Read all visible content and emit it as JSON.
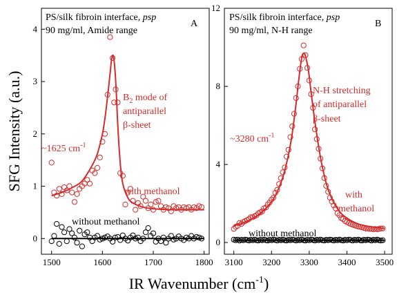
{
  "colors": {
    "red": "#d62a2a",
    "black": "#000000"
  },
  "chart_data": [
    {
      "type": "scatter",
      "panel_label": "A",
      "title_main": "PS/silk fibroin interface, ",
      "title_italic": "psp",
      "subtitle": "90 mg/ml, Amide range",
      "xlabel": "IR Wavenumber (cm-1)",
      "ylabel": "SFG Intensity (a.u.)",
      "xlim": [
        1480,
        1810
      ],
      "ylim": [
        -0.3,
        4.4
      ],
      "xticks": [
        1500,
        1600,
        1700,
        1800
      ],
      "yticks": [
        0,
        1,
        2,
        3,
        4
      ],
      "x_tick_labels": [
        "1500",
        "1600",
        "1700",
        "1800"
      ],
      "y_tick_labels": [
        "0",
        "1",
        "2",
        "3",
        "4"
      ],
      "annotations": {
        "peak_pre": "~1625 cm",
        "peak_sup": "-1",
        "mode_line1_pre": "B",
        "mode_line1_sub": "2",
        "mode_line1_post": " mode of",
        "mode_line2": "antiparallel",
        "mode_line3": "β-sheet",
        "with_label": "with methanol",
        "without_label": "without methanol"
      },
      "series": [
        {
          "label": "with methanol",
          "color": "#d62a2a",
          "x": [
            1500,
            1505,
            1510,
            1515,
            1520,
            1525,
            1530,
            1535,
            1540,
            1545,
            1550,
            1555,
            1560,
            1565,
            1570,
            1575,
            1580,
            1585,
            1590,
            1595,
            1600,
            1605,
            1610,
            1615,
            1620,
            1623,
            1626,
            1630,
            1635,
            1640,
            1645,
            1650,
            1655,
            1660,
            1665,
            1670,
            1675,
            1680,
            1685,
            1690,
            1695,
            1700,
            1705,
            1710,
            1715,
            1720,
            1725,
            1730,
            1735,
            1740,
            1745,
            1750,
            1755,
            1760,
            1765,
            1770,
            1775,
            1780,
            1785,
            1790,
            1795
          ],
          "y": [
            1.45,
            0.88,
            0.82,
            0.95,
            0.85,
            0.98,
            0.92,
            1.0,
            0.88,
            0.7,
            0.85,
            0.95,
            1.0,
            1.05,
            1.12,
            1.05,
            1.3,
            1.25,
            1.35,
            1.55,
            1.85,
            2.0,
            2.75,
            3.85,
            3.45,
            2.6,
            2.85,
            2.6,
            1.25,
            1.2,
            0.65,
            0.88,
            0.95,
            0.72,
            0.55,
            0.68,
            0.62,
            0.8,
            0.72,
            0.58,
            0.65,
            0.55,
            0.7,
            0.72,
            0.62,
            0.55,
            0.6,
            0.58,
            0.52,
            0.62,
            0.58,
            0.6,
            0.55,
            0.6,
            0.58,
            0.6,
            0.55,
            0.6,
            0.58,
            0.62,
            0.6
          ]
        },
        {
          "label": "with methanol fit",
          "color": "#d62a2a",
          "curve": true,
          "x": [
            1500,
            1520,
            1540,
            1560,
            1580,
            1590,
            1600,
            1605,
            1610,
            1615,
            1618,
            1621,
            1624,
            1627,
            1630,
            1635,
            1640,
            1650,
            1660,
            1680,
            1700,
            1740,
            1800
          ],
          "y": [
            0.82,
            0.88,
            0.97,
            1.1,
            1.4,
            1.62,
            2.0,
            2.3,
            2.7,
            3.15,
            3.42,
            3.5,
            3.3,
            2.85,
            2.2,
            1.45,
            1.05,
            0.78,
            0.68,
            0.6,
            0.57,
            0.55,
            0.55
          ]
        },
        {
          "label": "without methanol",
          "color": "#000000",
          "x": [
            1500,
            1505,
            1510,
            1515,
            1520,
            1525,
            1530,
            1535,
            1540,
            1545,
            1550,
            1555,
            1560,
            1565,
            1570,
            1575,
            1580,
            1585,
            1590,
            1595,
            1600,
            1605,
            1610,
            1615,
            1620,
            1625,
            1630,
            1635,
            1640,
            1645,
            1650,
            1655,
            1660,
            1665,
            1670,
            1675,
            1680,
            1685,
            1690,
            1695,
            1700,
            1705,
            1710,
            1715,
            1720,
            1725,
            1730,
            1735,
            1740,
            1745,
            1750,
            1755,
            1760,
            1765,
            1770,
            1775,
            1780,
            1785,
            1790,
            1795
          ],
          "y": [
            -0.05,
            0.05,
            0.28,
            -0.1,
            0.22,
            0.12,
            -0.05,
            0.18,
            0.1,
            0.02,
            -0.08,
            0.15,
            -0.15,
            0.08,
            0.12,
            0.02,
            -0.05,
            0.02,
            0.05,
            -0.02,
            0.0,
            0.02,
            0.04,
            0.0,
            -0.06,
            0.02,
            0.03,
            -0.03,
            0.06,
            0.0,
            -0.04,
            0.02,
            0.06,
            0.0,
            0.02,
            -0.05,
            0.0,
            0.12,
            0.2,
            0.05,
            0.1,
            -0.06,
            0.0,
            -0.05,
            0.02,
            -0.08,
            0.0,
            0.05,
            -0.02,
            0.0,
            0.04,
            0.0,
            -0.03,
            0.02,
            0.0,
            0.05,
            0.0,
            0.03,
            0.02,
            0.0
          ]
        },
        {
          "label": "without methanol fit",
          "color": "#000000",
          "curve": true,
          "x": [
            1500,
            1800
          ],
          "y": [
            0.0,
            0.0
          ]
        }
      ]
    },
    {
      "type": "scatter",
      "panel_label": "B",
      "title_main": "PS/silk fibroin interface, ",
      "title_italic": "psp",
      "subtitle": "90 mg/ml, N-H range",
      "xlabel": "IR Wavenumber (cm-1)",
      "ylabel": "",
      "xlim": [
        3075,
        3520
      ],
      "ylim": [
        -0.6,
        12
      ],
      "xticks": [
        3100,
        3200,
        3300,
        3400,
        3500
      ],
      "yticks": [
        0,
        4,
        8,
        12
      ],
      "x_tick_labels": [
        "3100",
        "3200",
        "3300",
        "3400",
        "3500"
      ],
      "y_tick_labels": [
        "0",
        "4",
        "8",
        "12"
      ],
      "annotations": {
        "peak_pre": "~3280 cm",
        "peak_sup": "-1",
        "mode_line1": "N-H stretching",
        "mode_line2": "of antiparallel",
        "mode_line3": "β-sheet",
        "with_label_1": "with",
        "with_label_2": "methanol",
        "without_label": "without methanol"
      },
      "series": [
        {
          "label": "with methanol",
          "color": "#d62a2a",
          "x": [
            3100,
            3105,
            3110,
            3115,
            3120,
            3125,
            3130,
            3135,
            3140,
            3145,
            3150,
            3155,
            3160,
            3165,
            3170,
            3175,
            3180,
            3185,
            3190,
            3195,
            3200,
            3205,
            3210,
            3215,
            3220,
            3225,
            3230,
            3235,
            3240,
            3245,
            3250,
            3255,
            3260,
            3265,
            3270,
            3275,
            3280,
            3285,
            3290,
            3295,
            3300,
            3305,
            3310,
            3315,
            3320,
            3325,
            3330,
            3335,
            3340,
            3345,
            3350,
            3355,
            3360,
            3365,
            3370,
            3375,
            3380,
            3385,
            3390,
            3395,
            3400,
            3405,
            3410,
            3415,
            3420,
            3425,
            3430,
            3435,
            3440,
            3445,
            3450,
            3455,
            3460,
            3465,
            3470,
            3475,
            3480,
            3485,
            3490,
            3495
          ],
          "y": [
            0.7,
            0.8,
            0.85,
            1.0,
            0.95,
            1.05,
            1.1,
            1.15,
            1.2,
            1.3,
            1.3,
            1.35,
            1.4,
            1.5,
            1.55,
            1.6,
            1.75,
            1.8,
            1.95,
            2.05,
            2.2,
            2.3,
            2.55,
            2.7,
            3.0,
            3.3,
            3.6,
            3.85,
            4.4,
            4.75,
            5.4,
            5.95,
            6.6,
            7.4,
            8.0,
            8.9,
            9.4,
            10.1,
            9.6,
            8.95,
            8.3,
            7.6,
            6.9,
            5.8,
            5.3,
            4.8,
            4.3,
            3.8,
            3.3,
            2.9,
            2.6,
            2.3,
            2.1,
            1.9,
            1.75,
            1.5,
            1.4,
            1.25,
            1.2,
            1.1,
            1.05,
            1.0,
            0.95,
            0.92,
            0.88,
            0.85,
            0.82,
            0.8,
            0.78,
            0.75,
            0.72,
            0.72,
            0.7,
            0.7,
            0.68,
            0.7,
            0.68,
            0.7,
            0.72,
            0.72
          ]
        },
        {
          "label": "with methanol fit",
          "color": "#d62a2a",
          "curve": true,
          "x": [
            3100,
            3130,
            3160,
            3190,
            3210,
            3230,
            3245,
            3255,
            3265,
            3272,
            3280,
            3285,
            3290,
            3298,
            3305,
            3315,
            3330,
            3345,
            3360,
            3380,
            3400,
            3430,
            3460,
            3500
          ],
          "y": [
            0.85,
            1.05,
            1.35,
            1.85,
            2.4,
            3.35,
            4.5,
            5.6,
            7.1,
            8.3,
            9.45,
            9.7,
            9.55,
            8.8,
            7.7,
            6.2,
            4.35,
            3.05,
            2.25,
            1.6,
            1.25,
            0.95,
            0.82,
            0.72
          ]
        },
        {
          "label": "without methanol",
          "color": "#000000",
          "x": [
            3100,
            3105,
            3110,
            3115,
            3120,
            3125,
            3130,
            3135,
            3140,
            3145,
            3150,
            3155,
            3160,
            3165,
            3170,
            3175,
            3180,
            3185,
            3190,
            3195,
            3200,
            3205,
            3210,
            3215,
            3220,
            3225,
            3230,
            3235,
            3240,
            3245,
            3250,
            3255,
            3260,
            3265,
            3270,
            3275,
            3280,
            3285,
            3290,
            3295,
            3300,
            3305,
            3310,
            3315,
            3320,
            3325,
            3330,
            3335,
            3340,
            3345,
            3350,
            3355,
            3360,
            3365,
            3370,
            3375,
            3380,
            3385,
            3390,
            3395,
            3400,
            3405,
            3410,
            3415,
            3420,
            3425,
            3430,
            3435,
            3440,
            3445,
            3450,
            3455,
            3460,
            3465,
            3470,
            3475,
            3480,
            3485,
            3490,
            3495
          ],
          "y": [
            0.15,
            0.12,
            0.15,
            0.1,
            0.14,
            0.12,
            0.15,
            0.13,
            0.1,
            0.14,
            0.12,
            0.15,
            0.12,
            0.1,
            0.14,
            0.12,
            0.15,
            0.12,
            0.1,
            0.14,
            0.12,
            0.15,
            0.13,
            0.1,
            0.14,
            0.12,
            0.15,
            0.12,
            0.1,
            0.14,
            0.12,
            0.15,
            0.13,
            0.1,
            0.14,
            0.12,
            0.15,
            0.12,
            0.1,
            0.14,
            0.12,
            0.15,
            0.13,
            0.1,
            0.14,
            0.12,
            0.15,
            0.12,
            0.1,
            0.14,
            0.12,
            0.15,
            0.13,
            0.1,
            0.14,
            0.12,
            0.15,
            0.12,
            0.1,
            0.14,
            0.12,
            0.15,
            0.13,
            0.1,
            0.14,
            0.12,
            0.15,
            0.12,
            0.1,
            0.14,
            0.12,
            0.15,
            0.13,
            0.1,
            0.14,
            0.12,
            0.15,
            0.12,
            0.1,
            0.12
          ]
        },
        {
          "label": "without methanol fit",
          "color": "#000000",
          "curve": true,
          "x": [
            3100,
            3500
          ],
          "y": [
            0.12,
            0.12
          ]
        }
      ]
    }
  ]
}
